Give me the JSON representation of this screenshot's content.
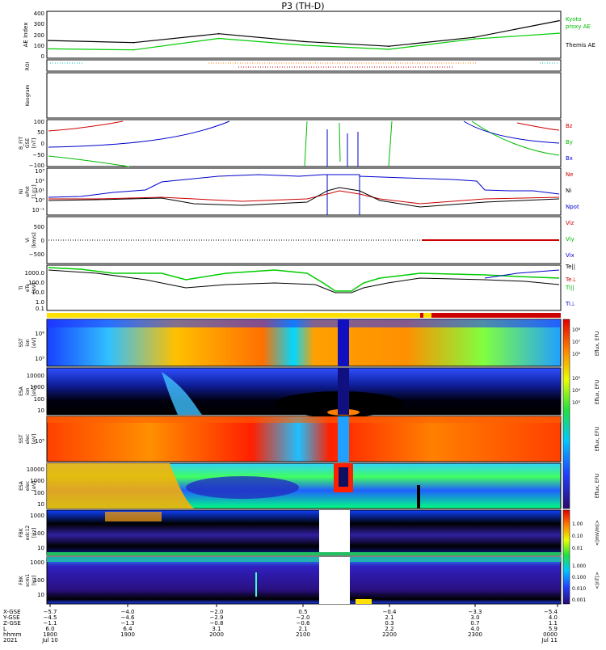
{
  "title": "P3 (TH-D)",
  "ae_panel": {
    "ylabel": "AE Index",
    "yticks": [
      "400",
      "300",
      "200",
      "100",
      "0"
    ],
    "legend": [
      "Kyoto",
      "proxy AE",
      "Themis AE"
    ]
  },
  "roi_panel": {
    "ylabel": "ROI"
  },
  "keogram_panel": {
    "ylabel": "Keogram"
  },
  "bfit_panel": {
    "ylabel": [
      "B_FIT",
      "GSE",
      "[nT]"
    ],
    "yticks": [
      "100",
      "50",
      "0",
      "−50",
      "−100"
    ],
    "legend": [
      "Bz",
      "By",
      "Bx"
    ]
  },
  "density_panel": {
    "ylabel": [
      "Ni",
      "ePot",
      "[1/cc]"
    ],
    "yticks": [
      "10³",
      "10²",
      "10¹",
      "10⁰",
      "10⁻¹"
    ],
    "legend": [
      "Ne",
      "Ni",
      "Npot"
    ]
  },
  "velocity_panel": {
    "ylabel": [
      "Vi",
      "[km/s]"
    ],
    "yticks": [
      "500",
      "0",
      "−500"
    ],
    "legend": [
      "Viz",
      "Viy",
      "Vix"
    ]
  },
  "temp_panel": {
    "ylabel": [
      "Ti",
      "eTe",
      "[eV]"
    ],
    "yticks": [
      "1000.0",
      "100.0",
      "10.0",
      "1.0",
      "0.1"
    ],
    "legend": [
      "Te||",
      "Te⊥",
      "Ti||",
      "Ti⊥"
    ]
  },
  "spec_panels": [
    {
      "ylabel": [
        "SST",
        "ion",
        "[eV]"
      ],
      "yticks": [
        "10⁶",
        "10⁵"
      ]
    },
    {
      "ylabel": [
        "ESA",
        "ion",
        "[eV]"
      ],
      "yticks": [
        "10000",
        "1000",
        "100",
        "10"
      ]
    },
    {
      "ylabel": [
        "SST",
        "elec",
        "[eV]"
      ],
      "yticks": [
        "10⁵"
      ]
    },
    {
      "ylabel": [
        "ESA",
        "elec",
        "[eV]"
      ],
      "yticks": [
        "10000",
        "1000",
        "100",
        "10"
      ]
    },
    {
      "ylabel": [
        "FBK",
        "edc12",
        "[Hz]"
      ],
      "yticks": [
        "1000",
        "100",
        "10"
      ]
    },
    {
      "ylabel": [
        "FBK",
        "scm1",
        "[Hz]"
      ],
      "yticks": [
        "1000",
        "100",
        "10"
      ]
    }
  ],
  "colorbars": {
    "eflux_label": "Eflux, EFU",
    "eflux_ticks": [
      "10⁸",
      "10⁷",
      "10⁶",
      "10⁵",
      "10⁴",
      "10³"
    ],
    "fbk_e_label": "<|mV/m|>",
    "fbk_e_ticks": [
      "1.00",
      "0.10",
      "0.01"
    ],
    "fbk_b_label": "<|nT|>",
    "fbk_b_ticks": [
      "1.000",
      "0.100",
      "0.010",
      "0.001"
    ]
  },
  "footer": {
    "row_labels": [
      "X-GSE",
      "Y-GSE",
      "Z-GSE",
      "L",
      "hhmm",
      "2021"
    ],
    "columns": [
      [
        "−5.7",
        "−4.5",
        "−1.1",
        "6.0",
        "1800",
        "Jul 10"
      ],
      [
        "−4.0",
        "−4.6",
        "−1.3",
        "6.4",
        "1900",
        ""
      ],
      [
        "−2.0",
        "−2.9",
        "−0.8",
        "3.1",
        "2000",
        ""
      ],
      [
        "0.5",
        "−2.0",
        "−0.6",
        "2.1",
        "2100",
        ""
      ],
      [
        "−0.4",
        "2.1",
        "0.3",
        "2.2",
        "2200",
        ""
      ],
      [
        "−3.3",
        "3.0",
        "0.7",
        "4.0",
        "2300",
        ""
      ],
      [
        "−5.4",
        "4.0",
        "1.1",
        "5.9",
        "0000",
        "Jul 11"
      ]
    ]
  },
  "colors": {
    "kyoto": "#00cc00",
    "themis": "#000000",
    "bz": "#cc0000",
    "by": "#00bb00",
    "bx": "#0000cc"
  },
  "chart_data": {
    "type": "line",
    "x": [
      "1800",
      "1900",
      "2000",
      "2100",
      "2200",
      "2300",
      "0000"
    ],
    "series": [
      {
        "name": "Themis AE",
        "values": [
          170,
          150,
          235,
          160,
          115,
          200,
          360
        ]
      },
      {
        "name": "Kyoto proxy AE",
        "values": [
          90,
          80,
          190,
          125,
          85,
          185,
          240
        ]
      }
    ],
    "ylabel": "AE Index",
    "ylim": [
      0,
      450
    ]
  }
}
